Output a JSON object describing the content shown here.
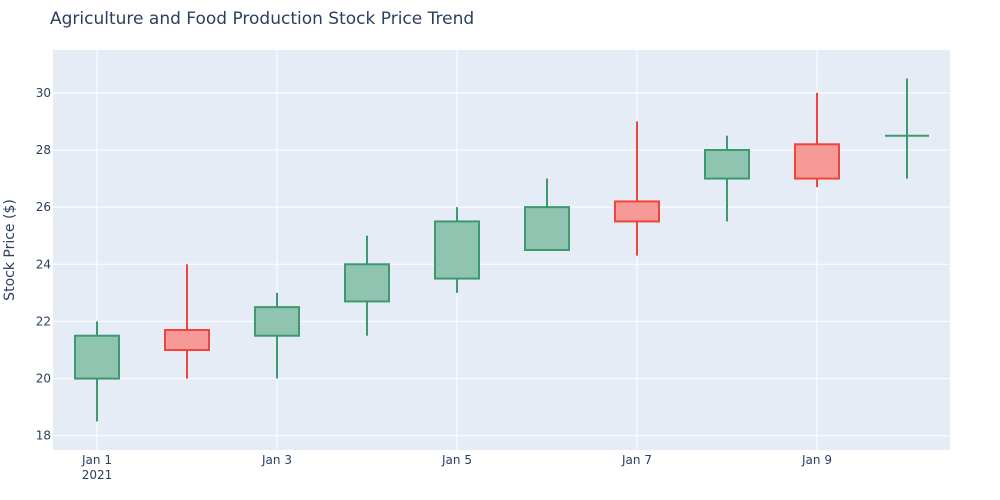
{
  "chart_data": {
    "type": "candlestick",
    "title": "Agriculture and Food Production Stock Price Trend",
    "xlabel": "",
    "ylabel": "Stock Price ($)",
    "x_ticks": [
      "Jan 1",
      "Jan 3",
      "Jan 5",
      "Jan 7",
      "Jan 9"
    ],
    "x_tick_year": "2021",
    "y_ticks": [
      18,
      20,
      22,
      24,
      26,
      28,
      30
    ],
    "ylim": [
      17.5,
      31.5
    ],
    "grid": true,
    "colors": {
      "increasing": "#3d9970",
      "increasing_fill": "#8fc4b0",
      "decreasing": "#f0453a",
      "decreasing_fill": "#f59a97",
      "plot_bg": "#e5ecf6",
      "grid": "#ffffff",
      "text": "#2a3f5f"
    },
    "series": [
      {
        "date": "2021-01-01",
        "open": 20.0,
        "high": 22.0,
        "low": 18.5,
        "close": 21.5
      },
      {
        "date": "2021-01-02",
        "open": 21.7,
        "high": 24.0,
        "low": 20.0,
        "close": 21.0
      },
      {
        "date": "2021-01-03",
        "open": 21.5,
        "high": 23.0,
        "low": 20.0,
        "close": 22.5
      },
      {
        "date": "2021-01-04",
        "open": 22.7,
        "high": 25.0,
        "low": 21.5,
        "close": 24.0
      },
      {
        "date": "2021-01-05",
        "open": 23.5,
        "high": 26.0,
        "low": 23.0,
        "close": 25.5
      },
      {
        "date": "2021-01-06",
        "open": 24.5,
        "high": 27.0,
        "low": 24.5,
        "close": 26.0
      },
      {
        "date": "2021-01-07",
        "open": 26.2,
        "high": 29.0,
        "low": 24.3,
        "close": 25.5
      },
      {
        "date": "2021-01-08",
        "open": 27.0,
        "high": 28.5,
        "low": 25.5,
        "close": 28.0
      },
      {
        "date": "2021-01-09",
        "open": 28.2,
        "high": 30.0,
        "low": 26.7,
        "close": 27.0
      },
      {
        "date": "2021-01-10",
        "open": 28.5,
        "high": 30.5,
        "low": 27.0,
        "close": 28.5
      }
    ]
  }
}
